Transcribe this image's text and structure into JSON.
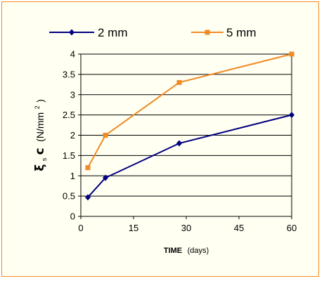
{
  "chart_data": {
    "type": "line",
    "title": "",
    "xlabel": {
      "bold": "TIME",
      "unit": "(days)"
    },
    "ylabel": {
      "symbol": "ξ",
      "subscript_text": "s",
      "letter": "c",
      "unit_prefix": "(N/mm",
      "unit_sup": "2",
      "unit_suffix": ")"
    },
    "xlim": [
      0,
      60
    ],
    "ylim": [
      0,
      4
    ],
    "xticks": [
      "0",
      "15",
      "30",
      "45",
      "60"
    ],
    "yticks": [
      "0",
      "0.5",
      "1",
      "1.5",
      "2",
      "2.5",
      "3",
      "3.5",
      "4"
    ],
    "grid": "horizontal",
    "legend_position": "top",
    "series": [
      {
        "name": "2 mm",
        "color": "#000080",
        "marker": "diamond",
        "x": [
          2,
          7,
          28,
          60
        ],
        "y": [
          0.47,
          0.95,
          1.8,
          2.5
        ]
      },
      {
        "name": "5 mm",
        "color": "#f08a24",
        "marker": "square",
        "x": [
          2,
          7,
          28,
          60
        ],
        "y": [
          1.2,
          2.0,
          3.3,
          4.0
        ]
      }
    ]
  }
}
